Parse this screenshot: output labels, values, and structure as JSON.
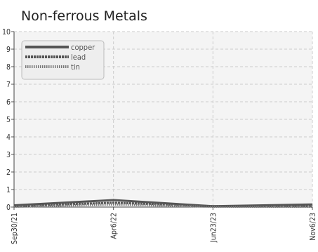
{
  "chart_data": {
    "type": "line",
    "title": "Non-ferrous Metals",
    "xlabel": "",
    "ylabel": "",
    "categories": [
      "Sep30/21",
      "Apr6/22",
      "Jun23/23",
      "Nov6/23"
    ],
    "ylim": [
      0,
      10
    ],
    "yticks": [
      "0",
      "1",
      "2",
      "3",
      "4",
      "5",
      "6",
      "7",
      "8",
      "9",
      "10"
    ],
    "grid": true,
    "legend_position": "top-left",
    "series": [
      {
        "name": "copper",
        "values": [
          0.1,
          0.4,
          0.05,
          0.15
        ],
        "color": "#555555",
        "style": "solid"
      },
      {
        "name": "lead",
        "values": [
          0.05,
          0.25,
          0.05,
          0.05
        ],
        "color": "#555555",
        "style": "dashed"
      },
      {
        "name": "tin",
        "values": [
          0.02,
          0.15,
          0.02,
          0.02
        ],
        "color": "#777777",
        "style": "dotted"
      }
    ]
  }
}
